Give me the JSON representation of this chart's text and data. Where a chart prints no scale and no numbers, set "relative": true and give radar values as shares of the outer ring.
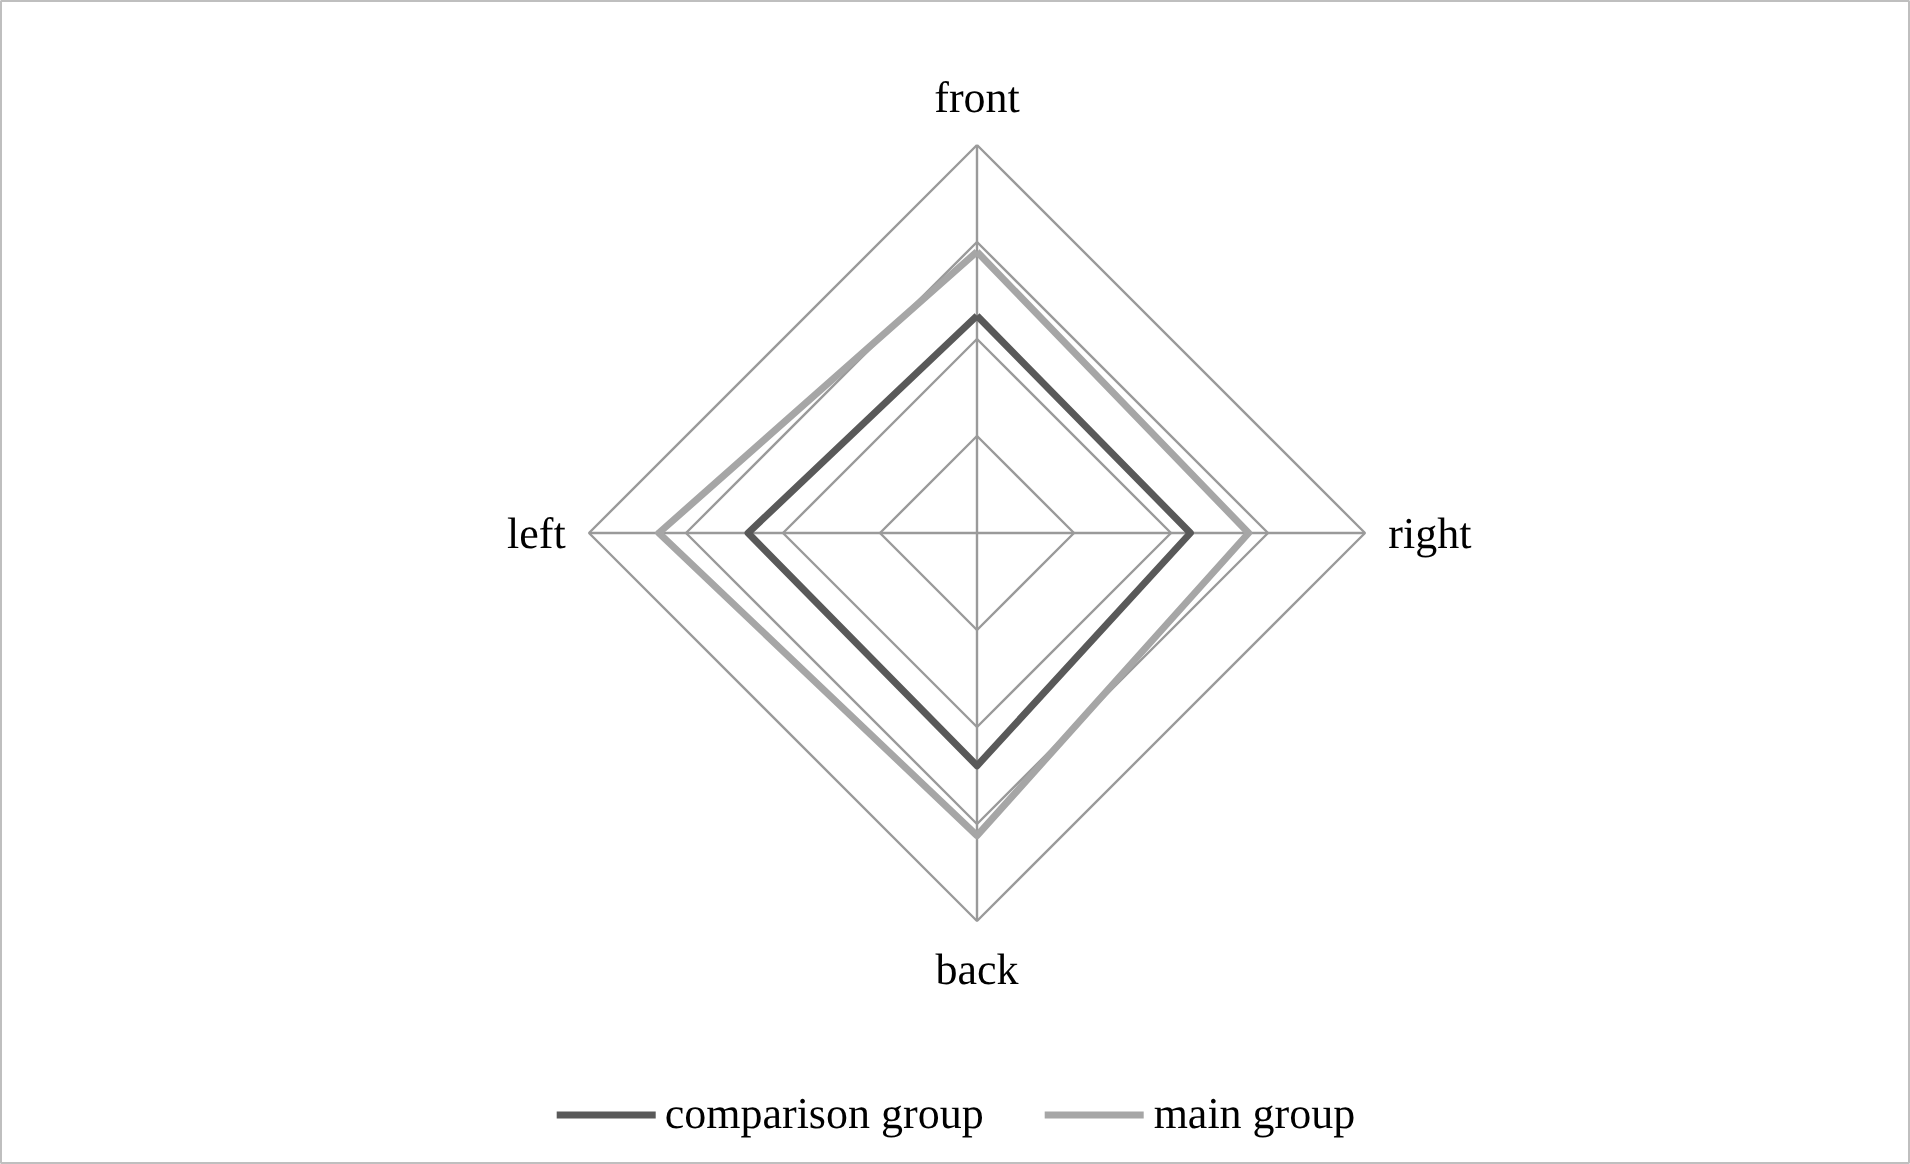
{
  "chart_data": {
    "type": "radar",
    "relative": true,
    "categories": [
      "front",
      "right",
      "back",
      "left"
    ],
    "series": [
      {
        "name": "comparison group",
        "color": "#595959",
        "values": [
          0.56,
          0.55,
          0.6,
          0.59
        ]
      },
      {
        "name": "main group",
        "color": "#a6a6a6",
        "values": [
          0.725,
          0.7,
          0.78,
          0.82
        ]
      }
    ],
    "grid": true,
    "legend": "bottom"
  }
}
